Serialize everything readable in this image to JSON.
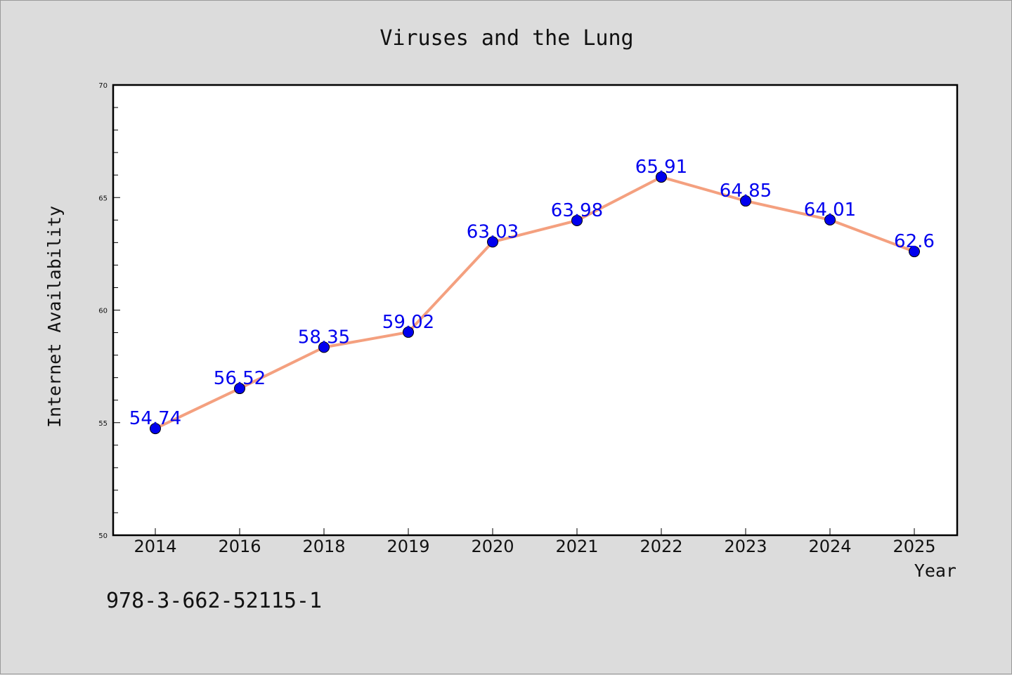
{
  "chart_data": {
    "type": "line",
    "title": "Viruses and the Lung",
    "xlabel": "Year",
    "ylabel": "Internet Availability",
    "categories": [
      "2014",
      "2016",
      "2018",
      "2019",
      "2020",
      "2021",
      "2022",
      "2023",
      "2024",
      "2025"
    ],
    "series": [
      {
        "values": [
          54.74,
          56.52,
          58.35,
          59.02,
          63.03,
          63.98,
          65.91,
          64.85,
          64.01,
          62.6
        ],
        "data_labels": [
          "54.74",
          "56.52",
          "58.35",
          "59.02",
          "63.03",
          "63.98",
          "65.91",
          "64.85",
          "64.01",
          "62.6"
        ]
      }
    ],
    "ylim": [
      50,
      70
    ],
    "yticks": [
      "50",
      "55",
      "60",
      "65",
      "70"
    ],
    "grid": false,
    "legend": "none",
    "colors": {
      "line": "#f4a07f",
      "marker": "#0000ee",
      "label": "#0000ee"
    }
  },
  "footer": {
    "isbn": "978-3-662-52115-1"
  }
}
